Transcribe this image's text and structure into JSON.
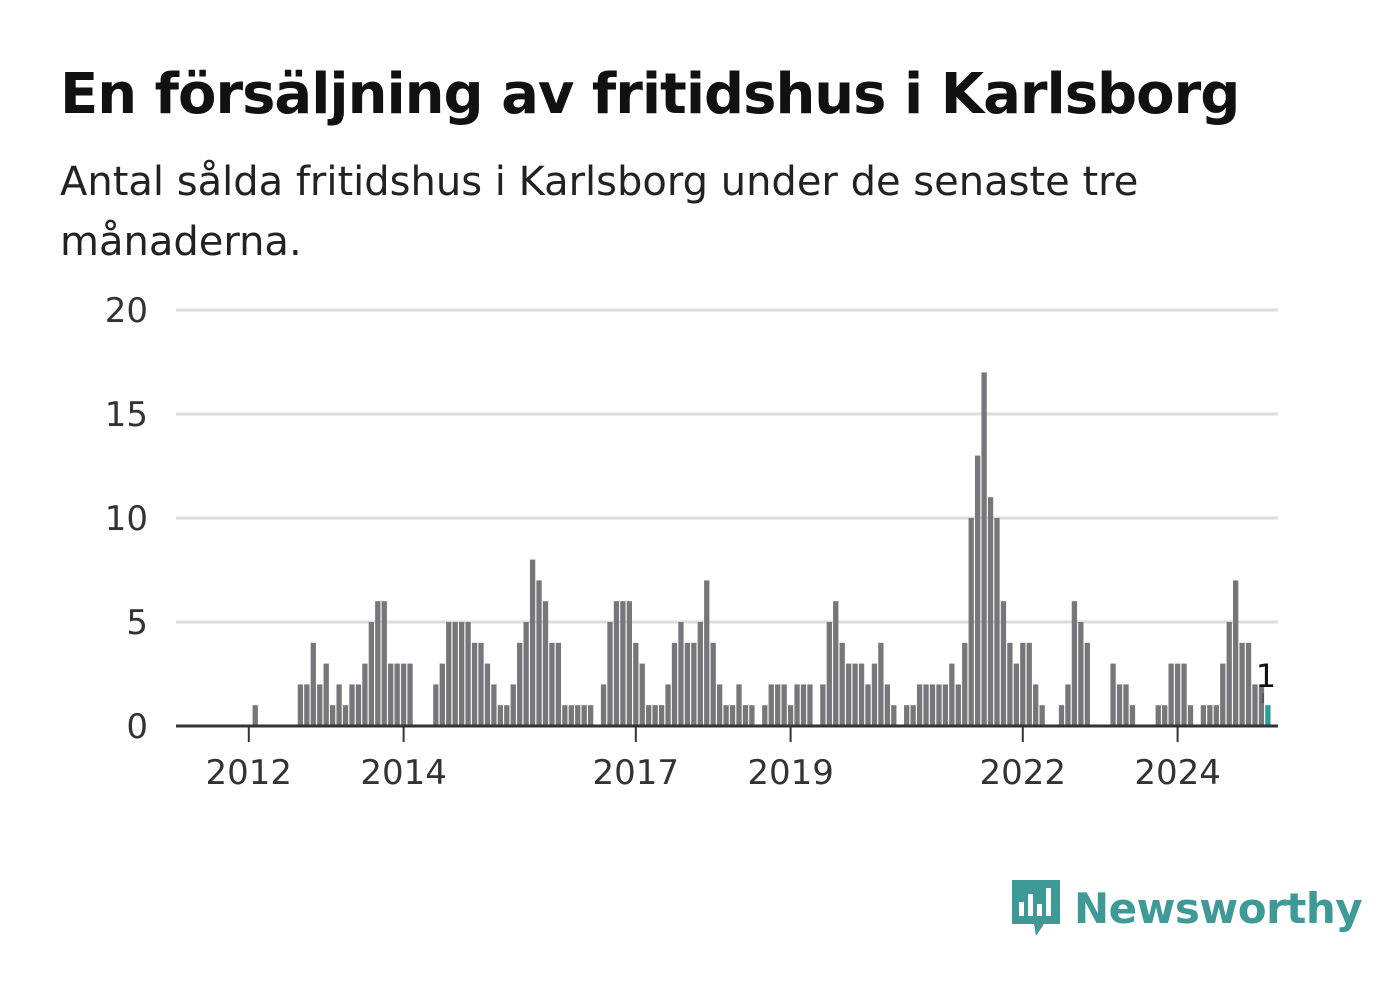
{
  "title": "En försäljning av fritidshus i Karlsborg",
  "subtitle": "Antal sålda fritidshus i Karlsborg under de senaste tre månaderna.",
  "brand": "Newsworthy",
  "colors": {
    "bar": "#77767b",
    "highlight": "#2a9d95",
    "grid": "#dddddd",
    "axis": "#333333",
    "brand": "#3e9a97"
  },
  "chart_data": {
    "type": "bar",
    "ylim": [
      0,
      20
    ],
    "yticks": [
      "0",
      "5",
      "10",
      "15",
      "20"
    ],
    "xticks": [
      "2012",
      "2014",
      "2017",
      "2019",
      "2022",
      "2024"
    ],
    "start": "2011-06",
    "values": [
      0,
      0,
      0,
      0,
      0,
      0,
      0,
      0,
      1,
      0,
      0,
      0,
      0,
      0,
      0,
      2,
      2,
      4,
      2,
      3,
      1,
      2,
      1,
      2,
      2,
      3,
      5,
      6,
      6,
      3,
      3,
      3,
      3,
      0,
      0,
      0,
      2,
      3,
      5,
      5,
      5,
      5,
      4,
      4,
      3,
      2,
      1,
      1,
      2,
      4,
      5,
      8,
      7,
      6,
      4,
      4,
      1,
      1,
      1,
      1,
      1,
      0,
      2,
      5,
      6,
      6,
      6,
      4,
      3,
      1,
      1,
      1,
      2,
      4,
      5,
      4,
      4,
      5,
      7,
      4,
      2,
      1,
      1,
      2,
      1,
      1,
      0,
      1,
      2,
      2,
      2,
      1,
      2,
      2,
      2,
      0,
      2,
      5,
      6,
      4,
      3,
      3,
      3,
      2,
      3,
      4,
      2,
      1,
      0,
      1,
      1,
      2,
      2,
      2,
      2,
      2,
      3,
      2,
      4,
      10,
      13,
      17,
      11,
      10,
      6,
      4,
      3,
      4,
      4,
      2,
      1,
      0,
      0,
      1,
      2,
      6,
      5,
      4,
      0,
      0,
      0,
      3,
      2,
      2,
      1,
      0,
      0,
      0,
      1,
      1,
      3,
      3,
      3,
      1,
      0,
      1,
      1,
      1,
      3,
      5,
      7,
      4,
      4,
      2,
      2,
      1
    ],
    "highlight_label": "1",
    "grid": true
  }
}
